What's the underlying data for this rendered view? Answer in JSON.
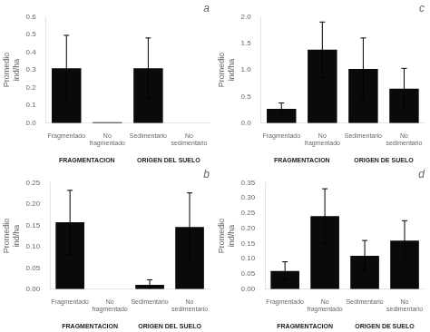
{
  "chart_data": [
    {
      "type": "bar",
      "title": "a",
      "ylabel": "Promedio\nind/ha",
      "xlabel": [
        "FRAGMENTACION",
        "ORIGEN DEL SUELO"
      ],
      "categories": [
        "Fragmentado",
        "No fragmentado",
        "Sedimentario",
        "No sedimentario"
      ],
      "values": [
        0.31,
        0.005,
        0.31,
        0.0
      ],
      "errors": [
        0.185,
        null,
        0.17,
        null
      ],
      "color": "#0a0a0a",
      "ylim": [
        0.0,
        0.6
      ],
      "yticks": [
        {
          "value": 0,
          "label": "0.0"
        },
        0.1,
        0.2,
        0.3,
        0.4,
        0.5,
        0.6
      ],
      "grid": false
    },
    {
      "type": "bar",
      "title": "c",
      "ylabel": "Promedio\nind/ha",
      "xlabel": [
        "FRAGMENTACION",
        "ORIGEN DE SUELO"
      ],
      "categories": [
        "Fragmentado",
        "No fragmentado",
        "Sedimentario",
        "No sedimentario"
      ],
      "values": [
        0.27,
        1.38,
        1.02,
        0.65
      ],
      "errors": [
        0.11,
        0.52,
        0.58,
        0.38
      ],
      "color": "#0a0a0a",
      "ylim": [
        0.0,
        2.0
      ],
      "yticks": [
        {
          "value": 0,
          "label": "0.0"
        },
        0.5,
        {
          "value": 1,
          "label": "1.0"
        },
        1.5,
        {
          "value": 2,
          "label": "2.0"
        }
      ],
      "grid": false
    },
    {
      "type": "bar",
      "title": "b",
      "ylabel": "Promedio\nind/ha",
      "xlabel": [
        "FRAGMENTACION",
        "ORIGEN DEL SUELO"
      ],
      "categories": [
        "Fragmentado",
        "No fragmentado",
        "Sedimentario",
        "No sedimentario"
      ],
      "values": [
        0.157,
        0.0,
        0.01,
        0.146
      ],
      "errors": [
        0.075,
        null,
        0.012,
        0.08
      ],
      "color": "#0a0a0a",
      "ylim": [
        0.0,
        0.25
      ],
      "yticks": [
        {
          "value": 0,
          "label": "0.00"
        },
        0.05,
        {
          "value": 0.1,
          "label": "0.10"
        },
        0.15,
        {
          "value": 0.2,
          "label": "0.20"
        },
        0.25
      ],
      "grid": false
    },
    {
      "type": "bar",
      "title": "d",
      "ylabel": "Promedio\nind/ha",
      "xlabel": [
        "FRAGMENTACION",
        "ORIGEN DE SUELO"
      ],
      "categories": [
        "Fragmentado",
        "No fragmentado",
        "Sedimentario",
        "No sedimentario"
      ],
      "values": [
        0.06,
        0.24,
        0.11,
        0.16
      ],
      "errors": [
        0.03,
        0.09,
        0.05,
        0.065
      ],
      "color": "#0a0a0a",
      "ylim": [
        0.0,
        0.35
      ],
      "yticks": [
        {
          "value": 0,
          "label": "0.00"
        },
        0.05,
        {
          "value": 0.1,
          "label": "0.10"
        },
        0.15,
        {
          "value": 0.2,
          "label": "0.20"
        },
        0.25,
        {
          "value": 0.3,
          "label": "0.30"
        },
        0.35
      ],
      "grid": false
    }
  ]
}
